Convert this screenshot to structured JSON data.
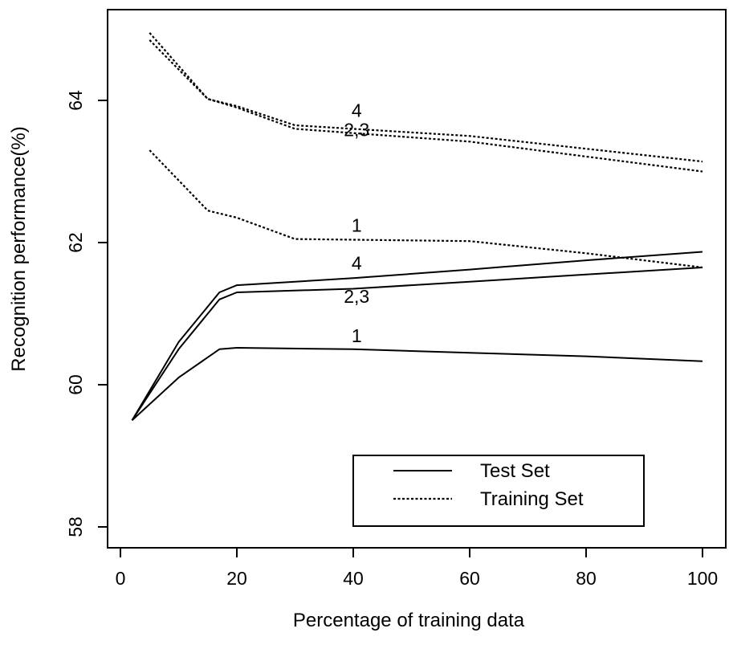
{
  "chart_data": {
    "type": "line",
    "xlabel": "Percentage of training data",
    "ylabel": "Recognition performance(%)",
    "xlim": [
      0,
      103
    ],
    "ylim": [
      57.6,
      65.3
    ],
    "x_ticks": [
      0,
      20,
      40,
      60,
      80,
      100
    ],
    "y_ticks": [
      58,
      60,
      62,
      64
    ],
    "grid": false,
    "legend_position": "bottom-right",
    "legend": [
      {
        "label": "Test Set",
        "style": "solid"
      },
      {
        "label": "Training Set",
        "style": "dotted"
      }
    ],
    "series": [
      {
        "group": "Test Set",
        "label": "1",
        "style": "solid",
        "x": [
          2,
          10,
          17,
          20,
          40,
          60,
          80,
          100
        ],
        "y": [
          59.5,
          60.1,
          60.5,
          60.52,
          60.5,
          60.45,
          60.4,
          60.33
        ]
      },
      {
        "group": "Test Set",
        "label": "2,3",
        "style": "solid",
        "x": [
          2,
          10,
          17,
          20,
          40,
          60,
          80,
          100
        ],
        "y": [
          59.5,
          60.5,
          61.2,
          61.3,
          61.35,
          61.45,
          61.55,
          61.65
        ]
      },
      {
        "group": "Test Set",
        "label": "4",
        "style": "solid",
        "x": [
          2,
          10,
          17,
          20,
          40,
          60,
          80,
          100
        ],
        "y": [
          59.5,
          60.6,
          61.3,
          61.4,
          61.5,
          61.62,
          61.75,
          61.87
        ]
      },
      {
        "group": "Training Set",
        "label": "1",
        "style": "dotted",
        "x": [
          5,
          15,
          20,
          30,
          60,
          80,
          100
        ],
        "y": [
          63.3,
          62.45,
          62.35,
          62.05,
          62.02,
          61.85,
          61.65
        ]
      },
      {
        "group": "Training Set",
        "label": "2,3",
        "style": "dotted",
        "x": [
          5,
          15,
          20,
          30,
          60,
          100
        ],
        "y": [
          64.85,
          64.02,
          63.9,
          63.6,
          63.42,
          63.0
        ]
      },
      {
        "group": "Training Set",
        "label": "4",
        "style": "dotted",
        "x": [
          5,
          15,
          20,
          30,
          60,
          100
        ],
        "y": [
          64.95,
          64.02,
          63.92,
          63.65,
          63.5,
          63.14
        ]
      }
    ],
    "annotations": [
      {
        "text": "4",
        "x": 33,
        "y": 63.77
      },
      {
        "text": "2,3",
        "x": 33,
        "y": 63.5
      },
      {
        "text": "1",
        "x": 33,
        "y": 62.15
      },
      {
        "text": "4",
        "x": 33,
        "y": 61.62
      },
      {
        "text": "2,3",
        "x": 33,
        "y": 61.15
      },
      {
        "text": "1",
        "x": 33,
        "y": 60.6
      }
    ]
  }
}
